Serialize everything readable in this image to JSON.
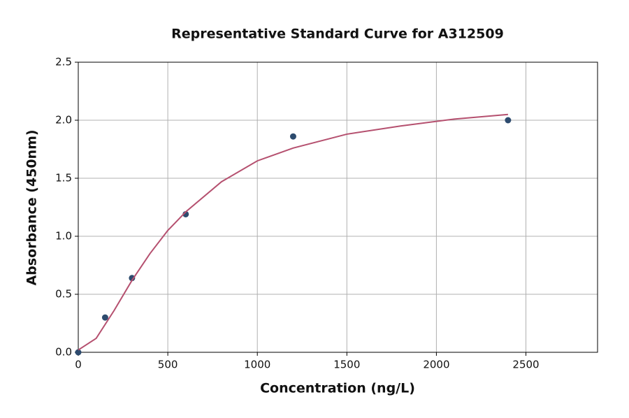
{
  "chart_data": {
    "type": "scatter",
    "title": "Representative Standard Curve for A312509",
    "x_label": "Concentration (ng/L)",
    "y_label": "Absorbance (450nm)",
    "xlim": [
      0,
      2900
    ],
    "ylim": [
      0,
      2.5
    ],
    "xticks": [
      0,
      500,
      1000,
      1500,
      2000,
      2500
    ],
    "yticks": [
      {
        "value": 0,
        "label": "0.0"
      },
      0.5,
      {
        "value": 1,
        "label": "1.0"
      },
      1.5,
      {
        "value": 2,
        "label": "2.0"
      },
      2.5
    ],
    "grid": true,
    "series": [
      {
        "mode": "markers",
        "color": "#2d4b6e",
        "x": [
          0,
          150,
          300,
          600,
          1200,
          2400
        ],
        "values": [
          0.0,
          0.3,
          0.64,
          1.19,
          1.86,
          2.0
        ]
      },
      {
        "mode": "line",
        "color": "#b5506f",
        "x": [
          0,
          100,
          200,
          300,
          400,
          500,
          600,
          800,
          1000,
          1200,
          1500,
          1800,
          2100,
          2400
        ],
        "values": [
          0.02,
          0.12,
          0.36,
          0.62,
          0.85,
          1.05,
          1.21,
          1.47,
          1.65,
          1.76,
          1.88,
          1.95,
          2.01,
          2.05
        ]
      }
    ]
  }
}
